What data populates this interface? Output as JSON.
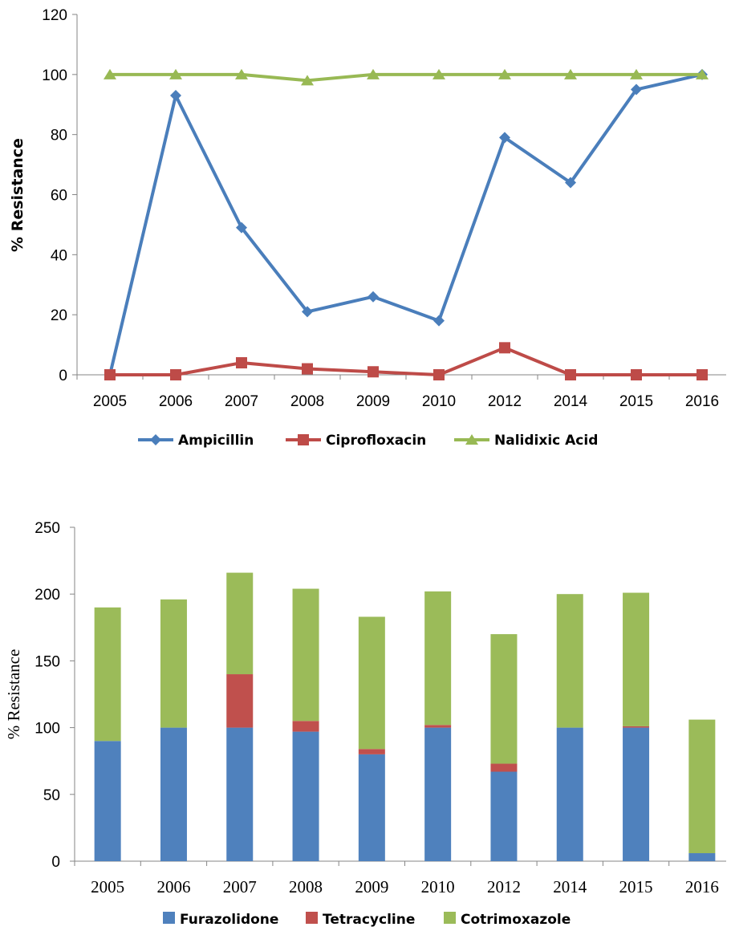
{
  "chart_data": [
    {
      "type": "line",
      "title": "",
      "xlabel": "",
      "ylabel": "% Resistance",
      "ylim": [
        0,
        120
      ],
      "yticks": [
        0,
        20,
        40,
        60,
        80,
        100,
        120
      ],
      "categories": [
        "2005",
        "2006",
        "2007",
        "2008",
        "2009",
        "2010",
        "2012",
        "2014",
        "2015",
        "2016"
      ],
      "legend_position": "bottom",
      "grid": false,
      "series": [
        {
          "name": "Ampicillin",
          "color": "#4A7EBB",
          "marker": "diamond",
          "values": [
            0,
            93,
            49,
            21,
            26,
            18,
            79,
            64,
            95,
            100
          ]
        },
        {
          "name": "Ciprofloxacin",
          "color": "#BE4B48",
          "marker": "square",
          "values": [
            0,
            0,
            4,
            2,
            1,
            0,
            9,
            0,
            0,
            0
          ]
        },
        {
          "name": "Nalidixic Acid",
          "color": "#98B954",
          "marker": "triangle",
          "values": [
            100,
            100,
            100,
            98,
            100,
            100,
            100,
            100,
            100,
            100
          ]
        }
      ]
    },
    {
      "type": "bar",
      "stacked": true,
      "title": "",
      "xlabel": "",
      "ylabel": "% Resistance",
      "ylim": [
        0,
        250
      ],
      "yticks": [
        0,
        50,
        100,
        150,
        200,
        250
      ],
      "categories": [
        "2005",
        "2006",
        "2007",
        "2008",
        "2009",
        "2010",
        "2012",
        "2014",
        "2015",
        "2016"
      ],
      "legend_position": "bottom",
      "grid": false,
      "series": [
        {
          "name": "Furazolidone",
          "color": "#4F81BD",
          "values": [
            90,
            100,
            100,
            97,
            80,
            100,
            67,
            100,
            100,
            6
          ]
        },
        {
          "name": "Tetracycline",
          "color": "#C0504D",
          "values": [
            0,
            0,
            40,
            8,
            4,
            2,
            6,
            0,
            1,
            0
          ]
        },
        {
          "name": "Cotrimoxazole",
          "color": "#9BBB59",
          "values": [
            100,
            96,
            76,
            99,
            99,
            100,
            97,
            100,
            100,
            100
          ]
        }
      ]
    }
  ]
}
